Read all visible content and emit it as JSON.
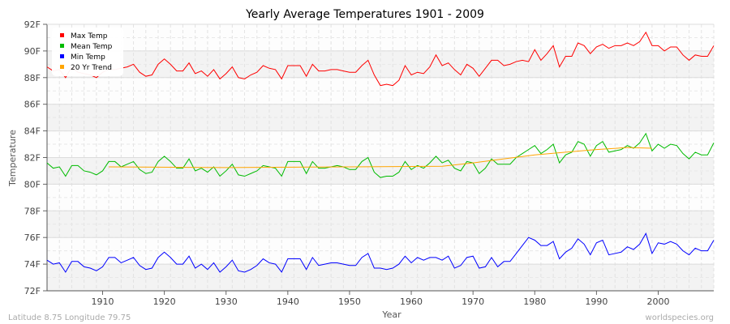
{
  "chart_data": {
    "type": "line",
    "title": "Yearly Average Temperatures 1901 - 2009",
    "xlabel": "Year",
    "ylabel": "Temperature",
    "xlim": [
      1901,
      2009
    ],
    "ylim": [
      72,
      92
    ],
    "x_ticks": [
      1910,
      1920,
      1930,
      1940,
      1950,
      1960,
      1970,
      1980,
      1990,
      2000
    ],
    "y_ticks": [
      "72F",
      "74F",
      "76F",
      "78F",
      "80F",
      "82F",
      "84F",
      "86F",
      "88F",
      "90F",
      "92F"
    ],
    "grid": true,
    "legend_position": "top-left",
    "x_start": 1901,
    "series": [
      {
        "name": "Max Temp",
        "color": "#ff0000",
        "values": [
          88.8,
          88.5,
          88.6,
          88.0,
          88.8,
          88.4,
          88.3,
          88.2,
          88.0,
          88.4,
          88.6,
          88.6,
          88.7,
          88.8,
          89.0,
          88.4,
          88.1,
          88.2,
          89.0,
          89.4,
          89.0,
          88.5,
          88.5,
          89.1,
          88.3,
          88.5,
          88.1,
          88.6,
          87.9,
          88.3,
          88.8,
          88.0,
          87.9,
          88.2,
          88.4,
          88.9,
          88.7,
          88.6,
          87.9,
          88.9,
          88.9,
          88.9,
          88.1,
          89.0,
          88.5,
          88.5,
          88.6,
          88.6,
          88.5,
          88.4,
          88.4,
          88.9,
          89.3,
          88.2,
          87.4,
          87.5,
          87.4,
          87.8,
          88.9,
          88.2,
          88.4,
          88.3,
          88.8,
          89.7,
          88.9,
          89.1,
          88.6,
          88.2,
          89.0,
          88.7,
          88.1,
          88.7,
          89.3,
          89.3,
          88.9,
          89.0,
          89.2,
          89.3,
          89.2,
          90.1,
          89.3,
          89.8,
          90.4,
          88.8,
          89.6,
          89.6,
          90.6,
          90.4,
          89.8,
          90.3,
          90.5,
          90.2,
          90.4,
          90.4,
          90.6,
          90.4,
          90.7,
          91.4,
          90.4,
          90.4,
          90.0,
          90.3,
          90.3,
          89.7,
          89.3,
          89.7,
          89.6,
          89.6,
          90.4
        ]
      },
      {
        "name": "Mean Temp",
        "color": "#00bb00",
        "values": [
          81.6,
          81.2,
          81.3,
          80.6,
          81.4,
          81.4,
          81.0,
          80.9,
          80.7,
          81.0,
          81.7,
          81.7,
          81.3,
          81.5,
          81.7,
          81.1,
          80.8,
          80.9,
          81.7,
          82.1,
          81.7,
          81.2,
          81.2,
          81.9,
          81.0,
          81.2,
          80.9,
          81.3,
          80.6,
          81.0,
          81.5,
          80.7,
          80.6,
          80.8,
          81.0,
          81.4,
          81.3,
          81.2,
          80.6,
          81.7,
          81.7,
          81.7,
          80.8,
          81.7,
          81.2,
          81.2,
          81.3,
          81.4,
          81.3,
          81.1,
          81.1,
          81.7,
          82.0,
          80.9,
          80.5,
          80.6,
          80.6,
          80.9,
          81.7,
          81.1,
          81.4,
          81.2,
          81.6,
          82.1,
          81.6,
          81.8,
          81.2,
          81.0,
          81.7,
          81.6,
          80.8,
          81.2,
          81.9,
          81.5,
          81.5,
          81.5,
          82.0,
          82.3,
          82.6,
          82.9,
          82.3,
          82.6,
          83.0,
          81.6,
          82.2,
          82.4,
          83.2,
          83.0,
          82.1,
          82.9,
          83.2,
          82.4,
          82.5,
          82.6,
          82.9,
          82.7,
          83.1,
          83.8,
          82.5,
          83.0,
          82.7,
          83.0,
          82.9,
          82.3,
          81.9,
          82.4,
          82.2,
          82.2,
          83.1
        ]
      },
      {
        "name": "Min Temp",
        "color": "#0000ff",
        "values": [
          74.3,
          74.0,
          74.1,
          73.4,
          74.2,
          74.2,
          73.8,
          73.7,
          73.5,
          73.8,
          74.5,
          74.5,
          74.1,
          74.3,
          74.5,
          73.9,
          73.6,
          73.7,
          74.5,
          74.9,
          74.5,
          74.0,
          74.0,
          74.6,
          73.7,
          74.0,
          73.6,
          74.1,
          73.4,
          73.8,
          74.3,
          73.5,
          73.4,
          73.6,
          73.9,
          74.4,
          74.1,
          74.0,
          73.4,
          74.4,
          74.4,
          74.4,
          73.6,
          74.5,
          73.9,
          74.0,
          74.1,
          74.1,
          74.0,
          73.9,
          73.9,
          74.5,
          74.8,
          73.7,
          73.7,
          73.6,
          73.7,
          74.0,
          74.6,
          74.1,
          74.5,
          74.3,
          74.5,
          74.5,
          74.3,
          74.6,
          73.7,
          73.9,
          74.5,
          74.6,
          73.7,
          73.8,
          74.5,
          73.8,
          74.2,
          74.2,
          74.8,
          75.4,
          76.0,
          75.8,
          75.4,
          75.4,
          75.7,
          74.4,
          74.9,
          75.2,
          75.9,
          75.5,
          74.7,
          75.6,
          75.8,
          74.7,
          74.8,
          74.9,
          75.3,
          75.1,
          75.5,
          76.3,
          74.8,
          75.6,
          75.5,
          75.7,
          75.5,
          75.0,
          74.7,
          75.2,
          75.0,
          75.0,
          75.8
        ]
      },
      {
        "name": "20 Yr Trend",
        "color": "#ffa500",
        "points": [
          [
            1911,
            81.3
          ],
          [
            1930,
            81.25
          ],
          [
            1950,
            81.3
          ],
          [
            1965,
            81.35
          ],
          [
            1970,
            81.6
          ],
          [
            1975,
            81.9
          ],
          [
            1980,
            82.2
          ],
          [
            1985,
            82.4
          ],
          [
            1990,
            82.6
          ],
          [
            1995,
            82.75
          ],
          [
            1999,
            82.7
          ]
        ]
      }
    ]
  },
  "footer": {
    "location": "Latitude 8.75 Longitude 79.75",
    "source": "worldspecies.org"
  }
}
